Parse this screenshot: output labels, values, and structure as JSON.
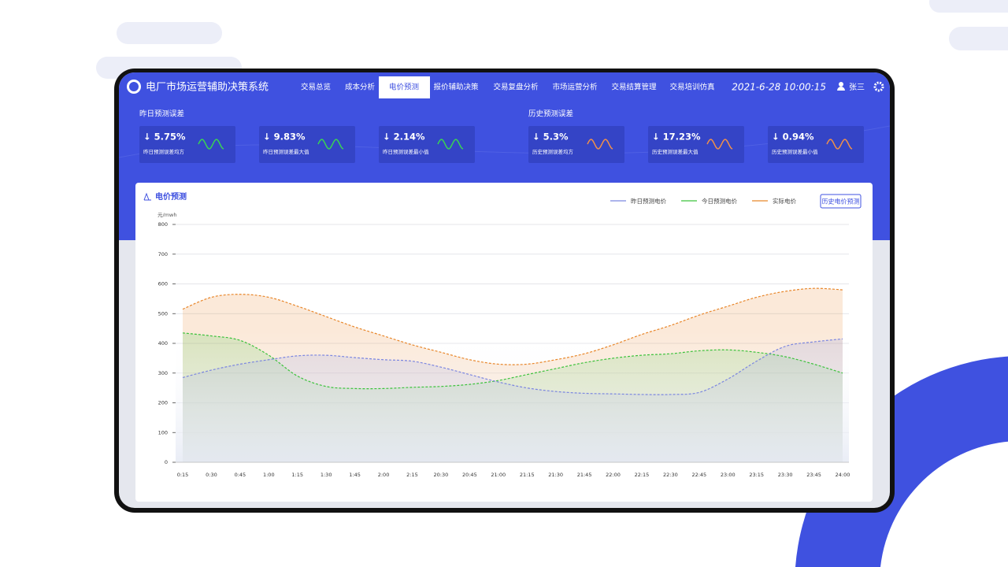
{
  "header": {
    "title": "电厂市场运营辅助决策系统",
    "nav": [
      "交易总览",
      "成本分析",
      "电价预测",
      "报价辅助决策",
      "交易复盘分析",
      "市场运营分析",
      "交易结算管理",
      "交易培训仿真"
    ],
    "active_nav": 2,
    "datetime": "2021-6-28 10:00:15",
    "user": "张三"
  },
  "error_groups": [
    {
      "title": "昨日预测误差",
      "cards": [
        {
          "value": "↓ 5.75%",
          "label": "昨日预测误差均方"
        },
        {
          "value": "↓ 9.83%",
          "label": "昨日预测误差最大值"
        },
        {
          "value": "↓ 2.14%",
          "label": "昨日预测误差最小值"
        }
      ],
      "spark_color": "#39d353"
    },
    {
      "title": "历史预测误差",
      "cards": [
        {
          "value": "↓ 5.3%",
          "label": "历史预测误差均方"
        },
        {
          "value": "↓ 17.23%",
          "label": "历史预测误差最大值"
        },
        {
          "value": "↓ 0.94%",
          "label": "历史预测误差最小值"
        }
      ],
      "spark_color": "#f0904a"
    }
  ],
  "chart_data": {
    "type": "line",
    "title": "电价预测",
    "button": "历史电价预测",
    "ylabel": "元/mwh",
    "categories": [
      "0:15",
      "0:30",
      "0:45",
      "1:00",
      "1:15",
      "1:30",
      "1:45",
      "2:00",
      "2:15",
      "20:30",
      "20:45",
      "21:00",
      "21:15",
      "21:30",
      "21:45",
      "22:00",
      "22:15",
      "22:30",
      "22:45",
      "23:00",
      "23:15",
      "23:30",
      "23:45",
      "24:00"
    ],
    "series": [
      {
        "name": "昨日预测电价",
        "color": "#7b86e0",
        "values": [
          285,
          310,
          330,
          345,
          358,
          360,
          352,
          345,
          340,
          320,
          295,
          270,
          250,
          238,
          232,
          230,
          228,
          228,
          235,
          280,
          340,
          390,
          405,
          415
        ]
      },
      {
        "name": "今日预测电价",
        "color": "#3cc23c",
        "values": [
          435,
          425,
          410,
          360,
          290,
          255,
          248,
          248,
          252,
          255,
          262,
          275,
          295,
          315,
          335,
          350,
          360,
          365,
          375,
          378,
          370,
          355,
          330,
          300
        ]
      },
      {
        "name": "实际电价",
        "color": "#e8862a",
        "values": [
          515,
          555,
          565,
          555,
          525,
          490,
          455,
          425,
          395,
          370,
          345,
          330,
          330,
          345,
          365,
          395,
          430,
          460,
          495,
          525,
          555,
          575,
          585,
          580
        ]
      }
    ],
    "ylim": [
      0,
      800
    ],
    "yticks": [
      0,
      100,
      200,
      300,
      400,
      500,
      600,
      700,
      800
    ],
    "grid": true
  }
}
